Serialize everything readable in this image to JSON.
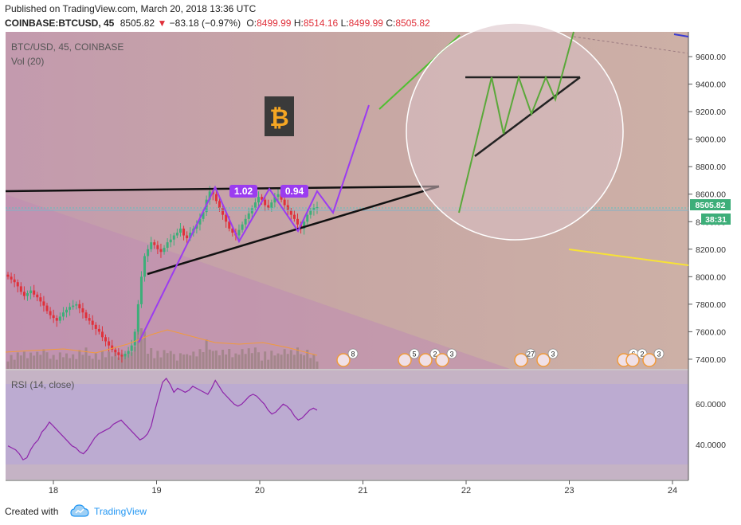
{
  "header": {
    "published": "Published on TradingView.com, March 20, 2018 13:36 UTC",
    "symbol": "COINBASE:BTCUSD, 45",
    "last": "8505.82",
    "change": "−83.18 (−0.97%)",
    "o_label": "O:",
    "o_value": "8499.99",
    "h_label": "H:",
    "h_value": "8514.16",
    "l_label": "L:",
    "l_value": "8499.99",
    "c_label": "C:",
    "c_value": "8505.82"
  },
  "legend": {
    "title": "BTC/USD, 45, COINBASE",
    "vol": "Vol (20)"
  },
  "rsi_pane": {
    "label": "RSI (14, close)",
    "ticks": [
      "60.0000",
      "40.0000"
    ]
  },
  "price_badge": {
    "value": "8505.82",
    "countdown": "38:31"
  },
  "annotations": {
    "label_1": "1.02",
    "label_2": "0.94",
    "bitcoin_logo": "₿"
  },
  "events": [
    "8",
    "5",
    "2",
    "3",
    "27",
    "3",
    "6",
    "2",
    "3"
  ],
  "footer": {
    "created_with": "Created with",
    "brand": "TradingView"
  },
  "colors": {
    "up": "#3dae79",
    "down": "#e0303a",
    "purple": "#9b3cf0",
    "green_line": "#5aa83a",
    "yellow_line": "#f7e236",
    "badge": "#3dae79"
  },
  "chart_data": {
    "type": "candlestick",
    "x_ticks": [
      "18",
      "19",
      "20",
      "21",
      "22",
      "23",
      "24"
    ],
    "y_ticks": [
      "9600.00",
      "9400.00",
      "9200.00",
      "9000.00",
      "8800.00",
      "8600.00",
      "8400.00",
      "8200.00",
      "8000.00",
      "7800.00",
      "7600.00",
      "7400.00"
    ],
    "ylim": [
      7330,
      9780
    ],
    "closes": [
      8000,
      7980,
      7960,
      7930,
      7890,
      7860,
      7880,
      7900,
      7870,
      7850,
      7820,
      7790,
      7750,
      7720,
      7700,
      7680,
      7710,
      7740,
      7760,
      7780,
      7790,
      7800,
      7770,
      7740,
      7700,
      7680,
      7650,
      7620,
      7600,
      7560,
      7530,
      7500,
      7470,
      7450,
      7430,
      7420,
      7440,
      7460,
      7500,
      7600,
      7800,
      8000,
      8150,
      8200,
      8250,
      8230,
      8200,
      8180,
      8210,
      8250,
      8270,
      8300,
      8320,
      8350,
      8300,
      8280,
      8320,
      8350,
      8380,
      8420,
      8470,
      8560,
      8620,
      8600,
      8550,
      8500,
      8450,
      8400,
      8350,
      8320,
      8300,
      8340,
      8380,
      8420,
      8460,
      8500,
      8540,
      8580,
      8560,
      8520,
      8500,
      8540,
      8580,
      8600,
      8560,
      8520,
      8480,
      8450,
      8420,
      8380,
      8350,
      8400,
      8450,
      8480,
      8500,
      8505.82
    ],
    "rsi": [
      37,
      36,
      35,
      33,
      30,
      31,
      35,
      38,
      40,
      44,
      46,
      49,
      47,
      45,
      43,
      41,
      39,
      37,
      36,
      34,
      33,
      35,
      38,
      41,
      43,
      44,
      45,
      46,
      48,
      49,
      50,
      48,
      46,
      44,
      42,
      40,
      41,
      43,
      47,
      55,
      62,
      69,
      71,
      68,
      64,
      66,
      65,
      64,
      65,
      67,
      66,
      65,
      64,
      63,
      66,
      70,
      67,
      64,
      62,
      60,
      58,
      57,
      58,
      60,
      62,
      63,
      62,
      60,
      58,
      55,
      53,
      54,
      56,
      58,
      57,
      55,
      52,
      50,
      51,
      53,
      55,
      56,
      55
    ],
    "rsi_ylim": [
      20,
      75
    ]
  }
}
